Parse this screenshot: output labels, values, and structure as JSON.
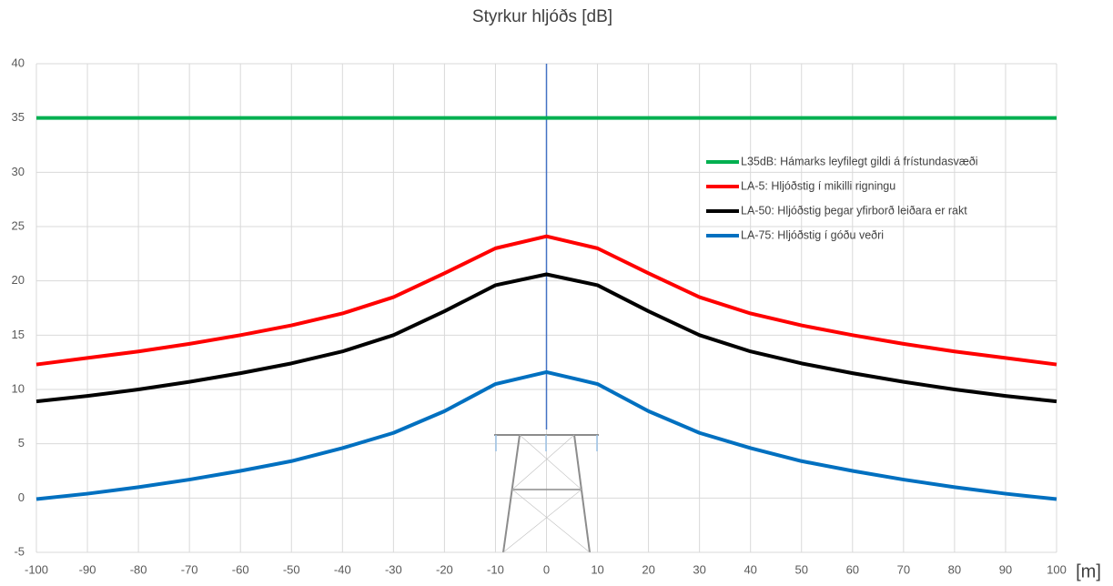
{
  "chart_data": {
    "type": "line",
    "title": "Styrkur hljóðs [dB]",
    "x_label": "[m]",
    "x": [
      -100,
      -90,
      -80,
      -70,
      -60,
      -50,
      -40,
      -30,
      -20,
      -10,
      0,
      10,
      20,
      30,
      40,
      50,
      60,
      70,
      80,
      90,
      100
    ],
    "series": [
      {
        "name": "L35dB: Hámarks leyfilegt gildi  á frístundasvæði",
        "color": "#00b050",
        "values": [
          35,
          35,
          35,
          35,
          35,
          35,
          35,
          35,
          35,
          35,
          35,
          35,
          35,
          35,
          35,
          35,
          35,
          35,
          35,
          35,
          35
        ]
      },
      {
        "name": "LA-5: Hljóðstig í mikilli rigningu",
        "color": "#ff0000",
        "values": [
          12.3,
          12.9,
          13.5,
          14.2,
          15.0,
          15.9,
          17.0,
          18.5,
          20.7,
          23.0,
          24.1,
          23.0,
          20.7,
          18.5,
          17.0,
          15.9,
          15.0,
          14.2,
          13.5,
          12.9,
          12.3
        ]
      },
      {
        "name": "LA-50: Hljóðstig þegar yfirborð leiðara er rakt",
        "color": "#000000",
        "values": [
          8.9,
          9.4,
          10.0,
          10.7,
          11.5,
          12.4,
          13.5,
          15.0,
          17.2,
          19.6,
          20.6,
          19.6,
          17.2,
          15.0,
          13.5,
          12.4,
          11.5,
          10.7,
          10.0,
          9.4,
          8.9
        ]
      },
      {
        "name": "LA-75: Hljóðstig í góðu veðri",
        "color": "#0070c0",
        "values": [
          -0.1,
          0.4,
          1.0,
          1.7,
          2.5,
          3.4,
          4.6,
          6.0,
          8.0,
          10.5,
          11.6,
          10.5,
          8.0,
          6.0,
          4.6,
          3.4,
          2.5,
          1.7,
          1.0,
          0.4,
          -0.1
        ]
      }
    ],
    "xlim": [
      -100,
      100
    ],
    "xticks": [
      -100,
      -90,
      -80,
      -70,
      -60,
      -50,
      -40,
      -30,
      -20,
      -10,
      0,
      10,
      20,
      30,
      40,
      50,
      60,
      70,
      80,
      90,
      100
    ],
    "ylim": [
      -5,
      40
    ],
    "yticks": [
      -5,
      0,
      5,
      10,
      15,
      20,
      25,
      30,
      35,
      40
    ],
    "grid": true
  }
}
